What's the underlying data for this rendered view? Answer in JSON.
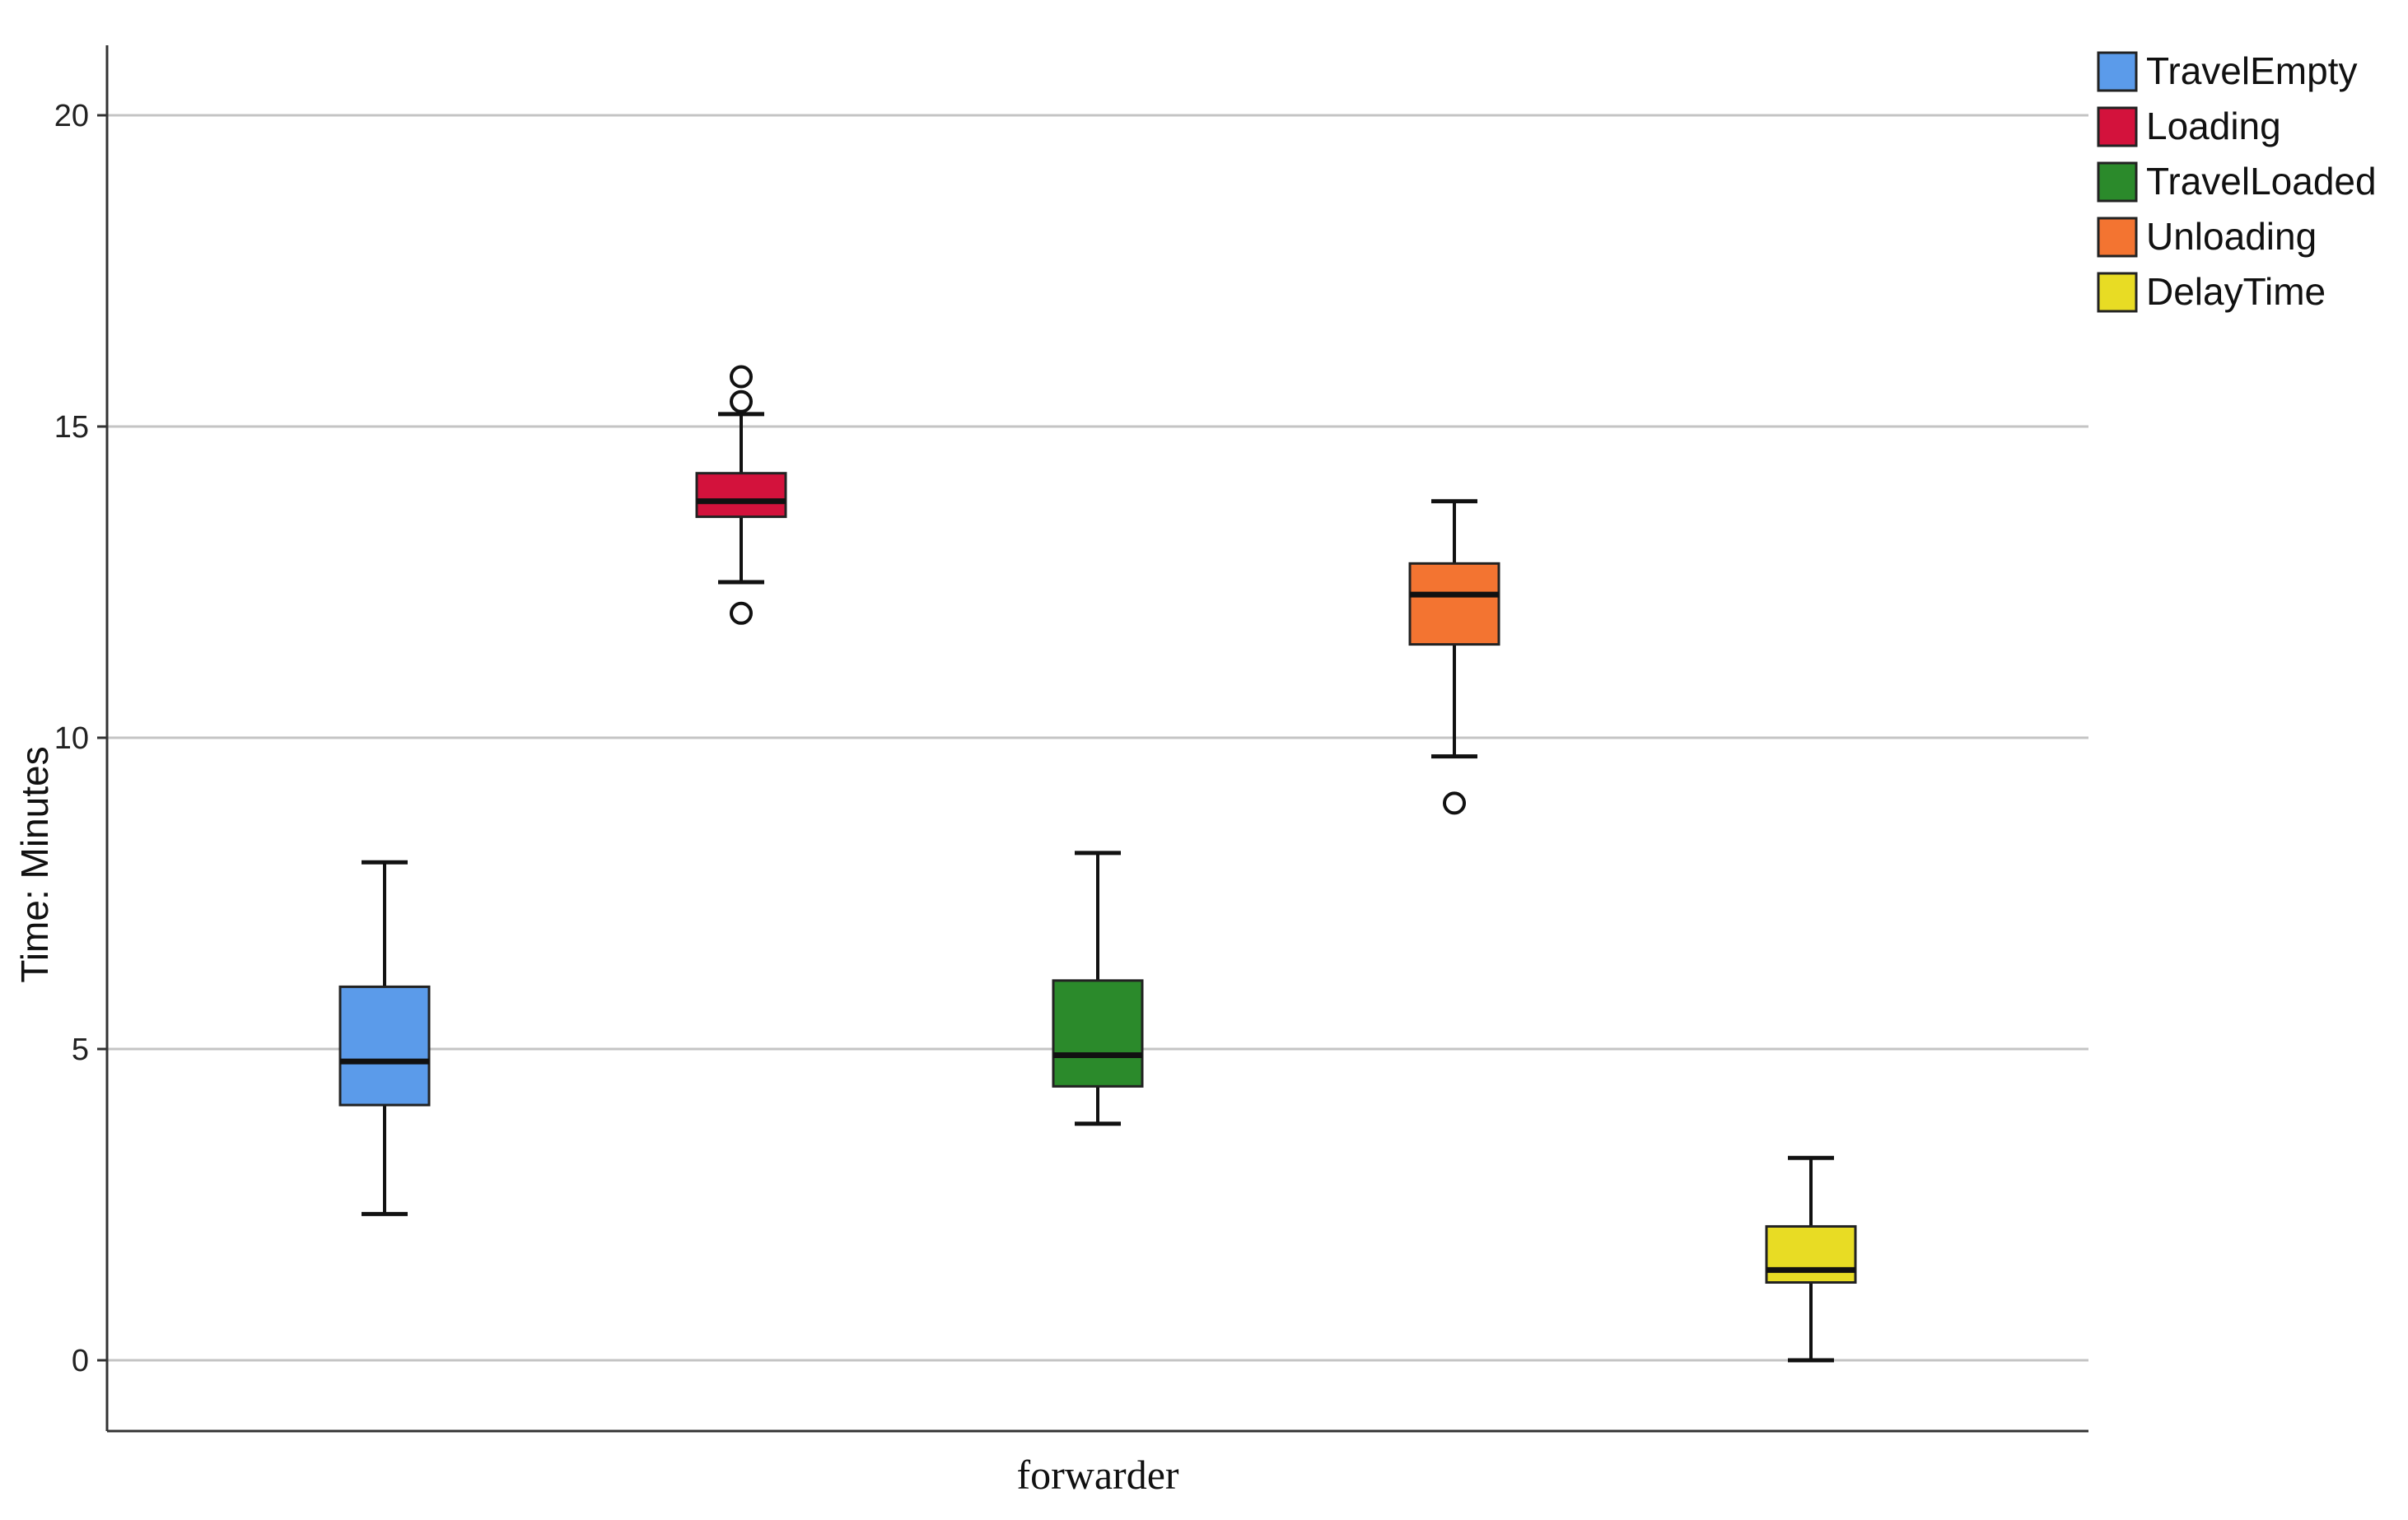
{
  "chart_data": {
    "type": "boxplot",
    "xlabel": "forwarder",
    "ylabel": "Time: Minutes",
    "ylim": [
      -1.1,
      21.1
    ],
    "yticks": [
      0,
      5,
      10,
      15,
      20
    ],
    "grid": true,
    "legend_position": "top-right",
    "series": [
      {
        "name": "TravelEmpty",
        "color": "#5b9bea",
        "min": 2.35,
        "q1": 4.1,
        "median": 4.8,
        "q3": 6.0,
        "max": 8.0,
        "outliers": []
      },
      {
        "name": "Loading",
        "color": "#d3123c",
        "min": 12.5,
        "q1": 13.55,
        "median": 13.8,
        "q3": 14.25,
        "max": 15.2,
        "outliers": [
          12.0,
          15.4,
          15.8
        ]
      },
      {
        "name": "TravelLoaded",
        "color": "#2b8a2b",
        "min": 3.8,
        "q1": 4.4,
        "median": 4.9,
        "q3": 6.1,
        "max": 8.15,
        "outliers": []
      },
      {
        "name": "Unloading",
        "color": "#f37431",
        "min": 9.7,
        "q1": 11.5,
        "median": 12.3,
        "q3": 12.8,
        "max": 13.8,
        "outliers": [
          8.95
        ]
      },
      {
        "name": "DelayTime",
        "color": "#e8dc24",
        "min": 0.0,
        "q1": 1.25,
        "median": 1.45,
        "q3": 2.15,
        "max": 3.25,
        "outliers": []
      }
    ]
  }
}
